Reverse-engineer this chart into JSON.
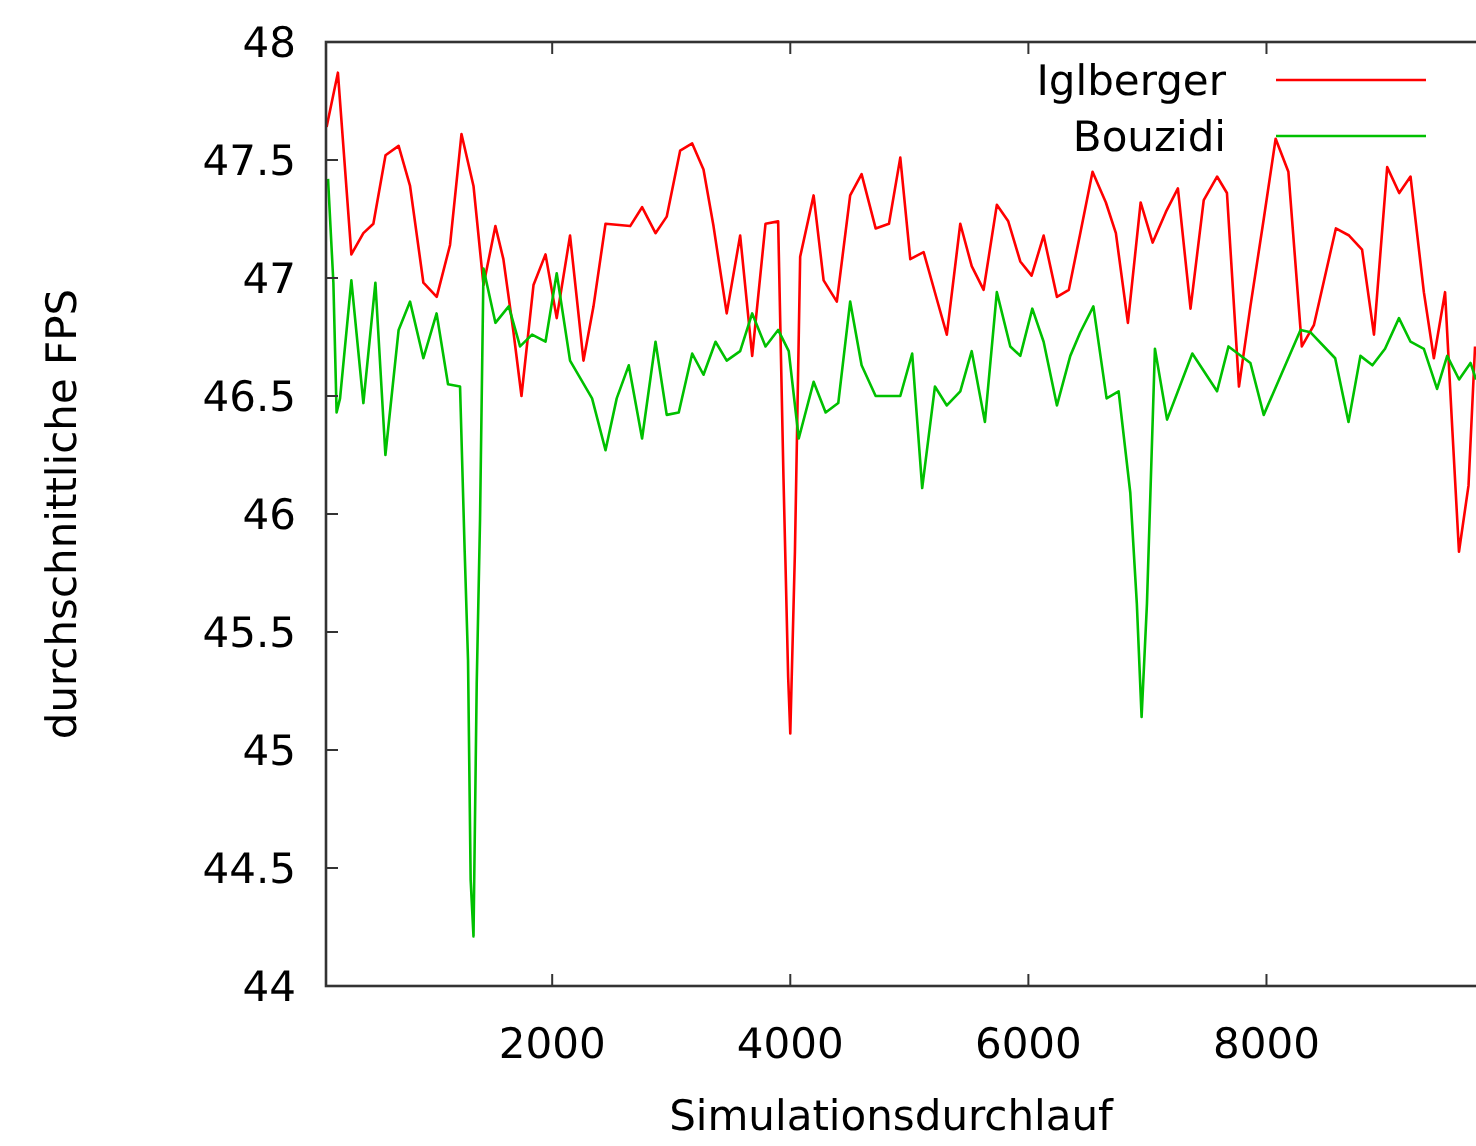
{
  "chart_data": {
    "type": "line",
    "xlabel": "Simulationsdurchlauf",
    "ylabel": "durchschnittliche FPS",
    "xlim": [
      100,
      9760
    ],
    "ylim": [
      44,
      48
    ],
    "xticks": [
      2000,
      4000,
      6000,
      8000
    ],
    "yticks": [
      44,
      44.5,
      45,
      45.5,
      46,
      46.5,
      47,
      47.5,
      48
    ],
    "grid": false,
    "legend": "top right",
    "marker": "none",
    "line_style": "solid",
    "series": [
      {
        "name": "Iglberger",
        "color": "#ff0000",
        "x": [
          105,
          200,
          313,
          414,
          498,
          600,
          710,
          806,
          918,
          1030,
          1142,
          1238,
          1339,
          1423,
          1523,
          1590,
          1675,
          1742,
          1843,
          1944,
          2038,
          2150,
          2263,
          2347,
          2448,
          2655,
          2755,
          2868,
          2962,
          3075,
          3176,
          3271,
          3355,
          3466,
          3579,
          3680,
          3792,
          3898,
          3943,
          3982,
          4000,
          4039,
          4083,
          4196,
          4280,
          4391,
          4503,
          4599,
          4717,
          4829,
          4924,
          5008,
          5120,
          5231,
          5315,
          5428,
          5524,
          5624,
          5735,
          5831,
          5932,
          6027,
          6128,
          6240,
          6340,
          6436,
          6539,
          6651,
          6735,
          6836,
          6943,
          7044,
          7155,
          7256,
          7362,
          7473,
          7585,
          7668,
          7769,
          7865,
          7977,
          8077,
          8184,
          8297,
          8398,
          8583,
          8694,
          8803,
          8903,
          9014,
          9115,
          9210,
          9322,
          9406,
          9500,
          9562,
          9617,
          9697,
          9752
        ],
        "values": [
          47.64,
          47.87,
          47.1,
          47.19,
          47.23,
          47.52,
          47.56,
          47.39,
          46.98,
          46.92,
          47.14,
          47.61,
          47.39,
          46.97,
          47.22,
          47.08,
          46.77,
          46.5,
          46.97,
          47.1,
          46.83,
          47.18,
          46.65,
          46.88,
          47.23,
          47.22,
          47.3,
          47.19,
          47.26,
          47.54,
          47.57,
          47.46,
          47.22,
          46.85,
          47.18,
          46.67,
          47.23,
          47.24,
          46.15,
          45.31,
          45.07,
          45.84,
          47.09,
          47.35,
          46.99,
          46.9,
          47.35,
          47.44,
          47.21,
          47.23,
          47.51,
          47.08,
          47.11,
          46.91,
          46.76,
          47.23,
          47.05,
          46.95,
          47.31,
          47.24,
          47.07,
          47.01,
          47.18,
          46.92,
          46.95,
          47.19,
          47.45,
          47.32,
          47.19,
          46.81,
          47.32,
          47.15,
          47.28,
          47.38,
          46.87,
          47.33,
          47.43,
          47.36,
          46.54,
          46.88,
          47.25,
          47.59,
          47.45,
          46.71,
          46.8,
          47.21,
          47.18,
          47.12,
          46.76,
          47.47,
          47.36,
          47.43,
          46.94,
          46.66,
          46.94,
          46.35,
          45.84,
          46.12,
          46.71
        ]
      },
      {
        "name": "Bouzidi",
        "color": "#00c000",
        "x": [
          117,
          162,
          189,
          218,
          313,
          414,
          515,
          599,
          710,
          806,
          918,
          1029,
          1125,
          1226,
          1265,
          1293,
          1315,
          1339,
          1366,
          1394,
          1423,
          1523,
          1635,
          1730,
          1831,
          1944,
          2038,
          2150,
          2335,
          2448,
          2542,
          2643,
          2755,
          2868,
          2962,
          3063,
          3176,
          3271,
          3372,
          3466,
          3579,
          3680,
          3792,
          3898,
          3987,
          4071,
          4196,
          4297,
          4403,
          4503,
          4599,
          4717,
          4924,
          5024,
          5108,
          5215,
          5315,
          5428,
          5524,
          5635,
          5735,
          5848,
          5932,
          6033,
          6128,
          6240,
          6352,
          6436,
          6546,
          6657,
          6758,
          6856,
          6911,
          6951,
          6996,
          7063,
          7165,
          7377,
          7585,
          7681,
          7865,
          7977,
          8286,
          8370,
          8577,
          8689,
          8789,
          8890,
          8996,
          9113,
          9210,
          9322,
          9433,
          9518,
          9618,
          9714,
          9760
        ],
        "values": [
          47.42,
          46.98,
          46.43,
          46.49,
          46.99,
          46.47,
          46.98,
          46.25,
          46.78,
          46.9,
          46.66,
          46.85,
          46.55,
          46.54,
          45.84,
          45.38,
          44.45,
          44.21,
          45.28,
          45.98,
          47.04,
          46.81,
          46.88,
          46.71,
          46.76,
          46.73,
          47.02,
          46.65,
          46.49,
          46.27,
          46.49,
          46.63,
          46.32,
          46.73,
          46.42,
          46.43,
          46.68,
          46.59,
          46.73,
          46.65,
          46.69,
          46.85,
          46.71,
          46.78,
          46.69,
          46.32,
          46.56,
          46.43,
          46.47,
          46.9,
          46.63,
          46.5,
          46.5,
          46.68,
          46.11,
          46.54,
          46.46,
          46.52,
          46.69,
          46.39,
          46.94,
          46.71,
          46.67,
          46.87,
          46.73,
          46.46,
          46.67,
          46.77,
          46.88,
          46.49,
          46.52,
          46.09,
          45.62,
          45.14,
          45.62,
          46.7,
          46.4,
          46.68,
          46.52,
          46.71,
          46.64,
          46.42,
          46.78,
          46.77,
          46.66,
          46.39,
          46.67,
          46.63,
          46.7,
          46.83,
          46.73,
          46.7,
          46.53,
          46.67,
          46.57,
          46.64,
          46.57
        ]
      }
    ]
  }
}
